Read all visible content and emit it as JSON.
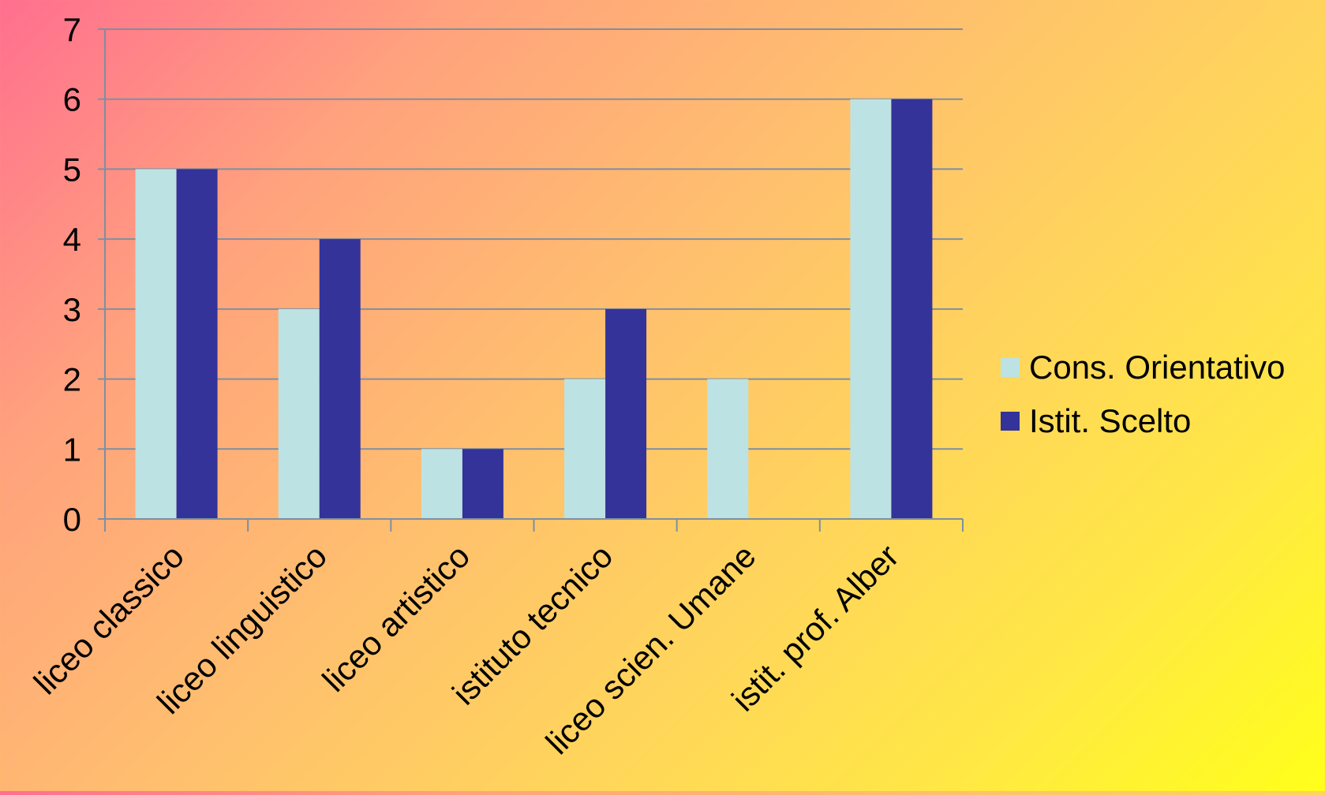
{
  "chart_data": {
    "type": "bar",
    "categories": [
      "liceo classico",
      "liceo linguistico",
      "liceo artistico",
      "istituto tecnico",
      "liceo scien. Umane",
      "istit. prof. Alber"
    ],
    "series": [
      {
        "name": "Cons. Orientativo",
        "values": [
          5,
          3,
          1,
          2,
          2,
          6
        ],
        "color": "#bde2e4"
      },
      {
        "name": "Istit. Scelto",
        "values": [
          5,
          4,
          1,
          3,
          0,
          6
        ],
        "color": "#333399"
      }
    ],
    "yticks": [
      "0",
      "1",
      "2",
      "3",
      "4",
      "5",
      "6",
      "7"
    ],
    "ylim": [
      0,
      7
    ],
    "grid": true,
    "legend_position": "right",
    "colors": {
      "gridline": "#7f8fa0",
      "axis": "#7f8fa0"
    }
  }
}
